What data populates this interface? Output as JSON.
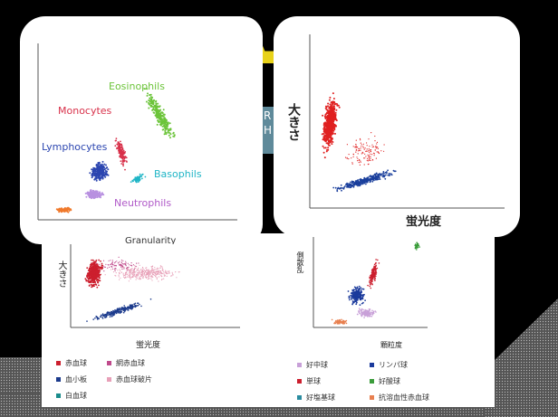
{
  "slide": {
    "title_fragment": "",
    "teal_text": [
      "R",
      "H"
    ]
  },
  "card1": {
    "labels": {
      "eosinophils": "Eosinophils",
      "monocytes": "Monocytes",
      "lymphocytes": "Lymphocytes",
      "basophils": "Basophils",
      "neutrophils": "Neutrophils",
      "xaxis": "Granularity"
    },
    "colors": {
      "eosinophils": "#6cc43a",
      "monocytes": "#d8314a",
      "lymphocytes": "#2c46b0",
      "basophils": "#1fb5c6",
      "neutrophils": "#b890e0",
      "debris": "#f07a2c"
    }
  },
  "card2": {
    "ylabel": "大きさ",
    "xlabel": "蛍光度",
    "colors": {
      "rbc": "#e02020",
      "plt": "#1a3f9c"
    }
  },
  "panel3": {
    "ylabel": "大きさ",
    "xlabel": "蛍光度",
    "legend": [
      {
        "label": "赤血球",
        "color": "#cc1f2e"
      },
      {
        "label": "網赤血球",
        "color": "#c04a8c"
      },
      {
        "label": "血小板",
        "color": "#1b3a8c"
      },
      {
        "label": "赤血球破片",
        "color": "#e8a0b8"
      },
      {
        "label": "白血球",
        "color": "#1a8c8c"
      }
    ]
  },
  "panel4": {
    "ylabel": "側散乱",
    "xlabel": "顆粒度",
    "legend": [
      {
        "label": "好中球",
        "color": "#c8a0d8"
      },
      {
        "label": "リンパ球",
        "color": "#1b3a9c"
      },
      {
        "label": "単球",
        "color": "#cc1f2e"
      },
      {
        "label": "好酸球",
        "color": "#3a9c3a"
      },
      {
        "label": "好塩基球",
        "color": "#2a8ca0"
      },
      {
        "label": "抗溶血性赤血球",
        "color": "#e88050"
      }
    ]
  }
}
